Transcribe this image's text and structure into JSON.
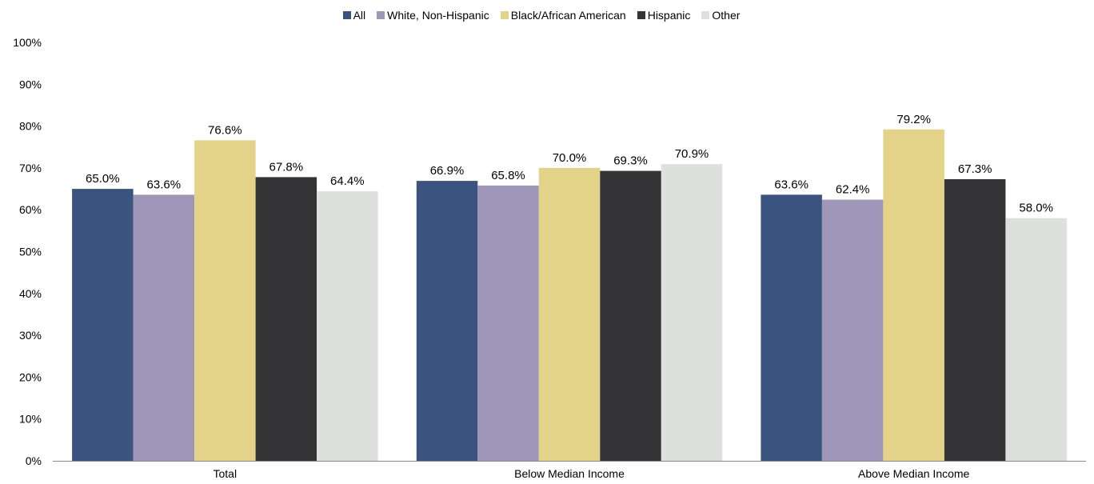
{
  "chart_data": {
    "type": "bar",
    "categories": [
      "Total",
      "Below Median Income",
      "Above Median Income"
    ],
    "series": [
      {
        "name": "All",
        "color": "#3a547f",
        "values": [
          65.0,
          66.9,
          63.6
        ],
        "labels": [
          "65.0%",
          "66.9%",
          "63.6%"
        ]
      },
      {
        "name": "White, Non-Hispanic",
        "color": "#9e97b9",
        "values": [
          63.6,
          65.8,
          62.4
        ],
        "labels": [
          "63.6%",
          "65.8%",
          "62.4%"
        ]
      },
      {
        "name": "Black/African American",
        "color": "#e2d388",
        "values": [
          76.6,
          70.0,
          79.2
        ],
        "labels": [
          "76.6%",
          "70.0%",
          "79.2%"
        ]
      },
      {
        "name": "Hispanic",
        "color": "#343436",
        "values": [
          67.8,
          69.3,
          67.3
        ],
        "labels": [
          "67.8%",
          "69.3%",
          "67.3%"
        ]
      },
      {
        "name": "Other",
        "color": "#dde0dc",
        "values": [
          64.4,
          70.9,
          58.0
        ],
        "labels": [
          "64.4%",
          "70.9%",
          "58.0%"
        ]
      }
    ],
    "ylim": [
      0,
      100
    ],
    "yticks": [
      "0%",
      "10%",
      "20%",
      "30%",
      "40%",
      "50%",
      "60%",
      "70%",
      "80%",
      "90%",
      "100%"
    ],
    "legend_position": "top",
    "grid": false
  }
}
